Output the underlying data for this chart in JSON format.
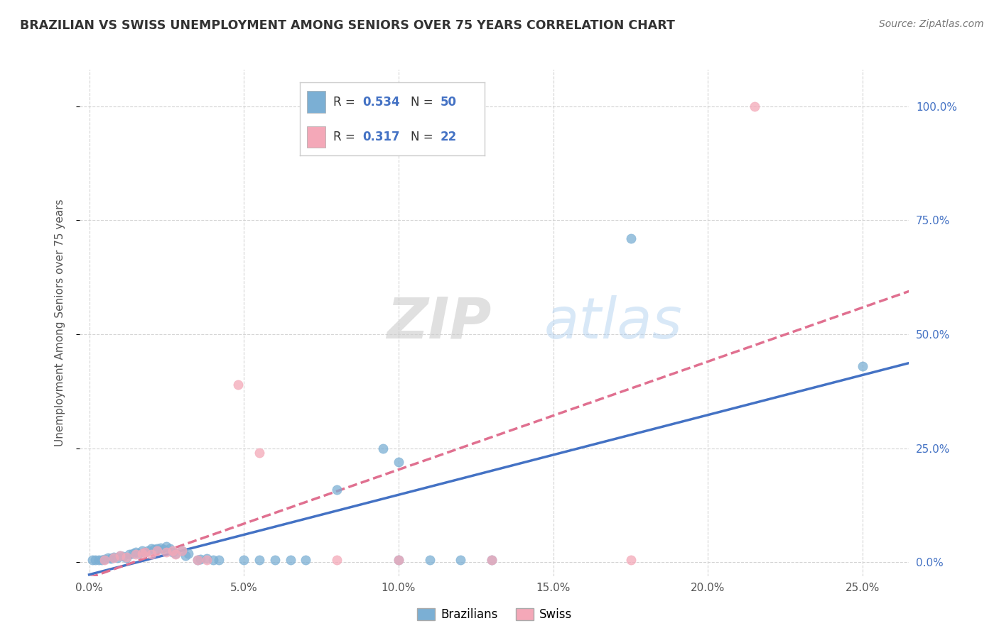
{
  "title": "BRAZILIAN VS SWISS UNEMPLOYMENT AMONG SENIORS OVER 75 YEARS CORRELATION CHART",
  "source": "Source: ZipAtlas.com",
  "xlabel_ticks": [
    "0.0%",
    "5.0%",
    "10.0%",
    "15.0%",
    "20.0%",
    "25.0%"
  ],
  "ylabel_ticks": [
    "0.0%",
    "25.0%",
    "50.0%",
    "75.0%",
    "100.0%"
  ],
  "xlabel_vals": [
    0.0,
    0.05,
    0.1,
    0.15,
    0.2,
    0.25
  ],
  "ylabel_vals": [
    0.0,
    0.25,
    0.5,
    0.75,
    1.0
  ],
  "xlim": [
    -0.003,
    0.265
  ],
  "ylim": [
    -0.03,
    1.08
  ],
  "ylabel": "Unemployment Among Seniors over 75 years",
  "brazil_R": 0.534,
  "brazil_N": 50,
  "swiss_R": 0.317,
  "swiss_N": 22,
  "brazil_color": "#7bafd4",
  "swiss_color": "#f4a8b8",
  "brazil_line_color": "#4472c4",
  "swiss_line_color": "#e07090",
  "brazil_scatter": [
    [
      0.001,
      0.005
    ],
    [
      0.002,
      0.005
    ],
    [
      0.003,
      0.005
    ],
    [
      0.004,
      0.005
    ],
    [
      0.005,
      0.007
    ],
    [
      0.006,
      0.01
    ],
    [
      0.007,
      0.008
    ],
    [
      0.008,
      0.012
    ],
    [
      0.009,
      0.01
    ],
    [
      0.01,
      0.015
    ],
    [
      0.011,
      0.013
    ],
    [
      0.012,
      0.01
    ],
    [
      0.013,
      0.018
    ],
    [
      0.014,
      0.02
    ],
    [
      0.015,
      0.022
    ],
    [
      0.016,
      0.02
    ],
    [
      0.017,
      0.025
    ],
    [
      0.018,
      0.022
    ],
    [
      0.019,
      0.025
    ],
    [
      0.02,
      0.03
    ],
    [
      0.021,
      0.028
    ],
    [
      0.022,
      0.03
    ],
    [
      0.023,
      0.032
    ],
    [
      0.024,
      0.028
    ],
    [
      0.025,
      0.035
    ],
    [
      0.026,
      0.03
    ],
    [
      0.027,
      0.022
    ],
    [
      0.028,
      0.02
    ],
    [
      0.03,
      0.025
    ],
    [
      0.031,
      0.015
    ],
    [
      0.032,
      0.02
    ],
    [
      0.035,
      0.005
    ],
    [
      0.036,
      0.007
    ],
    [
      0.038,
      0.008
    ],
    [
      0.04,
      0.005
    ],
    [
      0.042,
      0.005
    ],
    [
      0.05,
      0.005
    ],
    [
      0.055,
      0.005
    ],
    [
      0.06,
      0.005
    ],
    [
      0.065,
      0.005
    ],
    [
      0.07,
      0.005
    ],
    [
      0.08,
      0.16
    ],
    [
      0.095,
      0.25
    ],
    [
      0.1,
      0.005
    ],
    [
      0.1,
      0.22
    ],
    [
      0.11,
      0.005
    ],
    [
      0.12,
      0.005
    ],
    [
      0.13,
      0.005
    ],
    [
      0.175,
      0.71
    ],
    [
      0.25,
      0.43
    ]
  ],
  "swiss_scatter": [
    [
      0.005,
      0.005
    ],
    [
      0.008,
      0.01
    ],
    [
      0.01,
      0.015
    ],
    [
      0.012,
      0.012
    ],
    [
      0.015,
      0.018
    ],
    [
      0.017,
      0.02
    ],
    [
      0.018,
      0.022
    ],
    [
      0.02,
      0.018
    ],
    [
      0.022,
      0.025
    ],
    [
      0.025,
      0.022
    ],
    [
      0.027,
      0.025
    ],
    [
      0.028,
      0.018
    ],
    [
      0.03,
      0.025
    ],
    [
      0.035,
      0.005
    ],
    [
      0.038,
      0.005
    ],
    [
      0.048,
      0.39
    ],
    [
      0.055,
      0.24
    ],
    [
      0.08,
      0.005
    ],
    [
      0.1,
      0.005
    ],
    [
      0.13,
      0.005
    ],
    [
      0.175,
      0.005
    ],
    [
      0.215,
      1.0
    ]
  ],
  "background_color": "#ffffff",
  "grid_color": "#d0d0d0"
}
